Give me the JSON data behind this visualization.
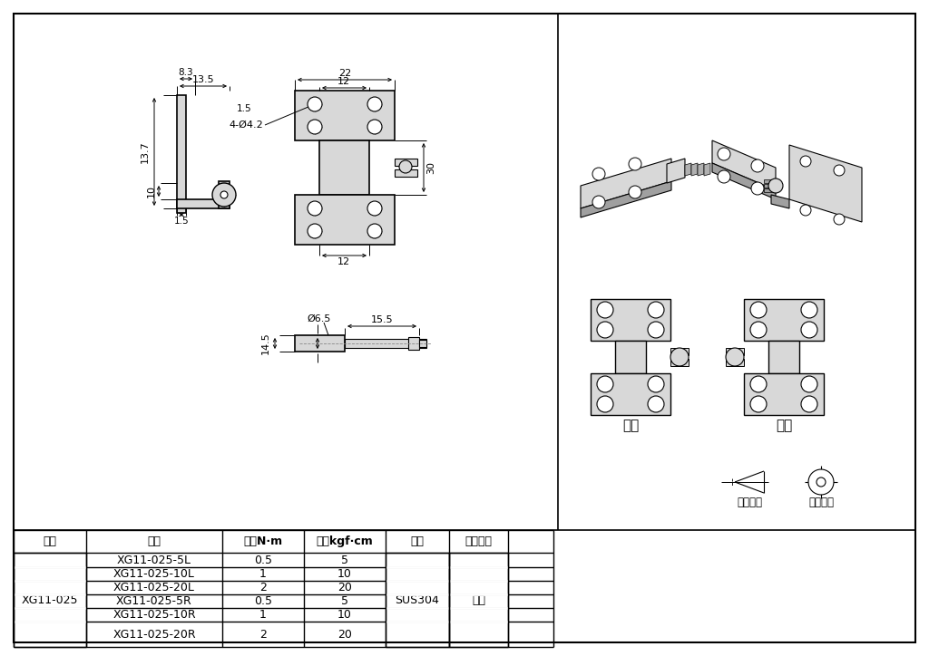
{
  "bg_color": "#ffffff",
  "line_color": "#000000",
  "gray_fill": "#c0c0c0",
  "light_gray": "#d8d8d8",
  "dark_gray": "#a0a0a0",
  "table_headers": [
    "代码",
    "货号",
    "扭矩N·m",
    "扭矩kgf·cm",
    "材质",
    "表面处理"
  ],
  "table_rows": [
    [
      "XG11-025-5L",
      "0.5",
      "5"
    ],
    [
      "XG11-025-10L",
      "1",
      "10"
    ],
    [
      "XG11-025-20L",
      "2",
      "20"
    ],
    [
      "XG11-025-5R",
      "0.5",
      "5"
    ],
    [
      "XG11-025-10R",
      "1",
      "10"
    ],
    [
      "XG11-025-20R",
      "2",
      "20"
    ]
  ],
  "merge_code": "XG11-025",
  "merge_material": "SUS304",
  "merge_surface": "震光",
  "left_label": "左用",
  "right_label": "右用",
  "view_std": "视图标准",
  "first_angle": "第一视角"
}
